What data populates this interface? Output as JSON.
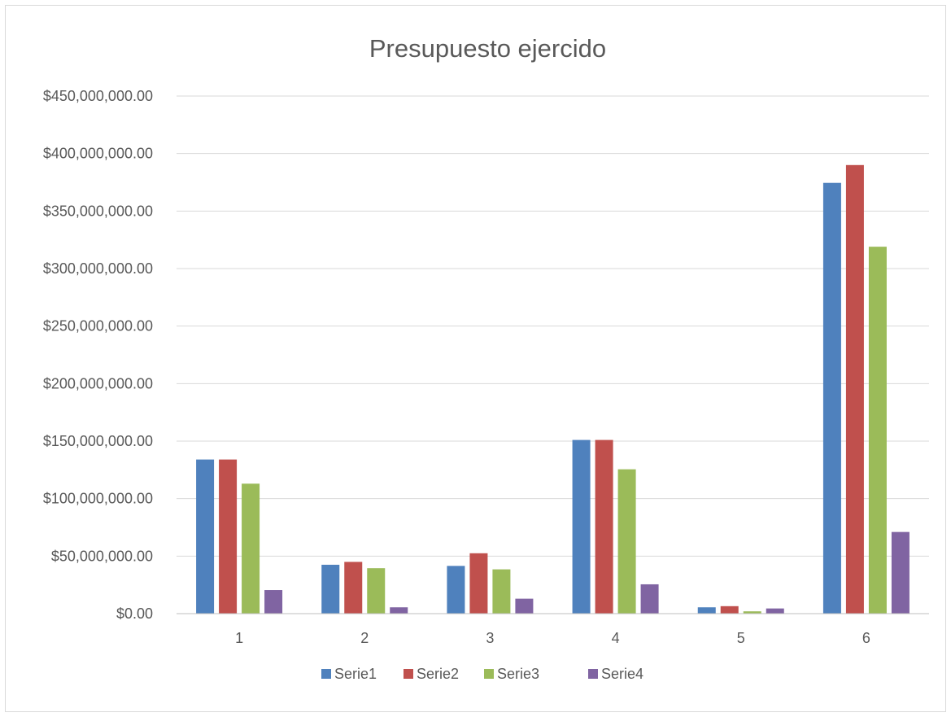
{
  "chart_data": {
    "type": "bar",
    "title": "Presupuesto ejercido",
    "categories": [
      "1",
      "2",
      "3",
      "4",
      "5",
      "6"
    ],
    "series": [
      {
        "name": "Serie1",
        "color": "#4f81bd",
        "values": [
          134000000,
          42500000,
          41500000,
          151000000,
          5500000,
          374500000
        ]
      },
      {
        "name": "Serie2",
        "color": "#c0504d",
        "values": [
          134000000,
          45000000,
          52500000,
          151000000,
          6500000,
          390000000
        ]
      },
      {
        "name": "Serie3",
        "color": "#9bbb59",
        "values": [
          113000000,
          39500000,
          38500000,
          125500000,
          2000000,
          319000000
        ]
      },
      {
        "name": "Serie4",
        "color": "#8064a2",
        "values": [
          20500000,
          5500000,
          13000000,
          25500000,
          4500000,
          71000000
        ]
      }
    ],
    "yticks": [
      "$0.00",
      "$50,000,000.00",
      "$100,000,000.00",
      "$150,000,000.00",
      "$200,000,000.00",
      "$250,000,000.00",
      "$300,000,000.00",
      "$350,000,000.00",
      "$400,000,000.00",
      "$450,000,000.00"
    ],
    "ylim": [
      0,
      450000000
    ],
    "grid": true,
    "legend_position": "bottom"
  }
}
